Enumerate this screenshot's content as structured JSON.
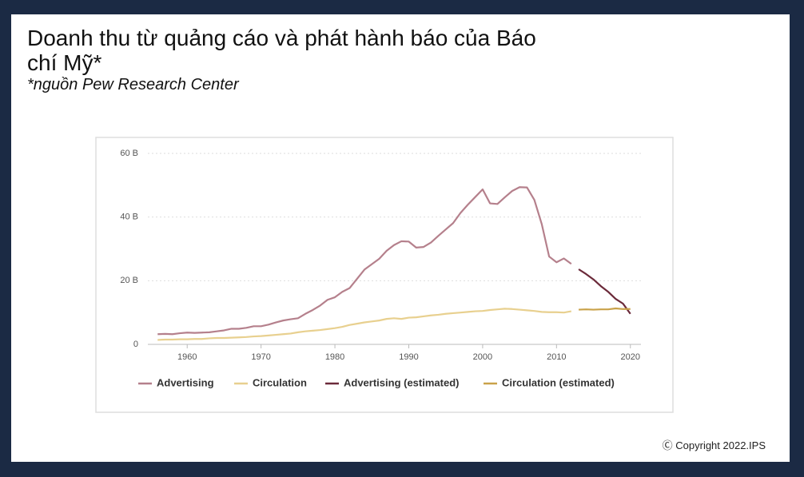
{
  "title": "Doanh thu từ quảng cáo và phát hành báo của Báo chí Mỹ*",
  "subtitle": "*nguồn Pew Research Center",
  "copyright": "Copyright 2022.IPS",
  "chart_data": {
    "type": "line",
    "xlim": [
      1955,
      2021
    ],
    "xticks": [
      1960,
      1970,
      1980,
      1990,
      2000,
      2010,
      2020
    ],
    "ylim": [
      0,
      60
    ],
    "yticks": [
      0,
      {
        "value": 20,
        "label": "20 B"
      },
      {
        "value": 40,
        "label": "40 B"
      },
      {
        "value": 60,
        "label": "60 B"
      }
    ],
    "grid": true,
    "legend": "bottom",
    "series": [
      {
        "name": "Advertising",
        "color": "#b5808c",
        "x": [
          1956,
          1957,
          1958,
          1959,
          1960,
          1961,
          1962,
          1963,
          1964,
          1965,
          1966,
          1967,
          1968,
          1969,
          1970,
          1971,
          1972,
          1973,
          1974,
          1975,
          1976,
          1977,
          1978,
          1979,
          1980,
          1981,
          1982,
          1983,
          1984,
          1985,
          1986,
          1987,
          1988,
          1989,
          1990,
          1991,
          1992,
          1993,
          1994,
          1995,
          1996,
          1997,
          1998,
          1999,
          2000,
          2001,
          2002,
          2003,
          2004,
          2005,
          2006,
          2007,
          2008,
          2009,
          2010,
          2011,
          2012
        ],
        "values": [
          3.2,
          3.3,
          3.2,
          3.5,
          3.7,
          3.6,
          3.7,
          3.8,
          4.1,
          4.4,
          4.9,
          4.9,
          5.2,
          5.7,
          5.7,
          6.2,
          6.9,
          7.5,
          7.9,
          8.2,
          9.6,
          10.8,
          12.2,
          14.0,
          14.8,
          16.5,
          17.7,
          20.6,
          23.5,
          25.2,
          26.9,
          29.4,
          31.2,
          32.4,
          32.3,
          30.4,
          30.6,
          32.0,
          34.1,
          36.1,
          38.1,
          41.3,
          43.9,
          46.3,
          48.7,
          44.3,
          44.1,
          46.2,
          48.2,
          49.4,
          49.3,
          45.4,
          37.8,
          27.6,
          25.8,
          27.0,
          25.3
        ]
      },
      {
        "name": "Circulation",
        "color": "#e8d08f",
        "x": [
          1956,
          1957,
          1958,
          1959,
          1960,
          1961,
          1962,
          1963,
          1964,
          1965,
          1966,
          1967,
          1968,
          1969,
          1970,
          1971,
          1972,
          1973,
          1974,
          1975,
          1976,
          1977,
          1978,
          1979,
          1980,
          1981,
          1982,
          1983,
          1984,
          1985,
          1986,
          1987,
          1988,
          1989,
          1990,
          1991,
          1992,
          1993,
          1994,
          1995,
          1996,
          1997,
          1998,
          1999,
          2000,
          2001,
          2002,
          2003,
          2004,
          2005,
          2006,
          2007,
          2008,
          2009,
          2010,
          2011,
          2012
        ],
        "values": [
          1.4,
          1.5,
          1.5,
          1.6,
          1.6,
          1.7,
          1.7,
          1.9,
          2.0,
          2.0,
          2.1,
          2.2,
          2.3,
          2.5,
          2.6,
          2.8,
          3.0,
          3.2,
          3.4,
          3.8,
          4.1,
          4.3,
          4.5,
          4.8,
          5.1,
          5.5,
          6.1,
          6.5,
          6.9,
          7.2,
          7.5,
          8.0,
          8.2,
          8.0,
          8.4,
          8.5,
          8.8,
          9.1,
          9.3,
          9.6,
          9.8,
          10.0,
          10.2,
          10.4,
          10.5,
          10.8,
          11.0,
          11.2,
          11.1,
          10.9,
          10.7,
          10.5,
          10.2,
          10.1,
          10.1,
          10.0,
          10.4
        ]
      },
      {
        "name": "Advertising (estimated)",
        "color": "#6b2a3a",
        "x": [
          2013,
          2014,
          2015,
          2016,
          2017,
          2018,
          2019,
          2020
        ],
        "values": [
          23.6,
          22.1,
          20.4,
          18.3,
          16.5,
          14.3,
          12.8,
          9.6
        ]
      },
      {
        "name": "Circulation (estimated)",
        "color": "#c9a24a",
        "x": [
          2013,
          2014,
          2015,
          2016,
          2017,
          2018,
          2019,
          2020
        ],
        "values": [
          10.9,
          11.0,
          10.9,
          11.0,
          11.0,
          11.3,
          11.1,
          11.1
        ]
      }
    ]
  }
}
